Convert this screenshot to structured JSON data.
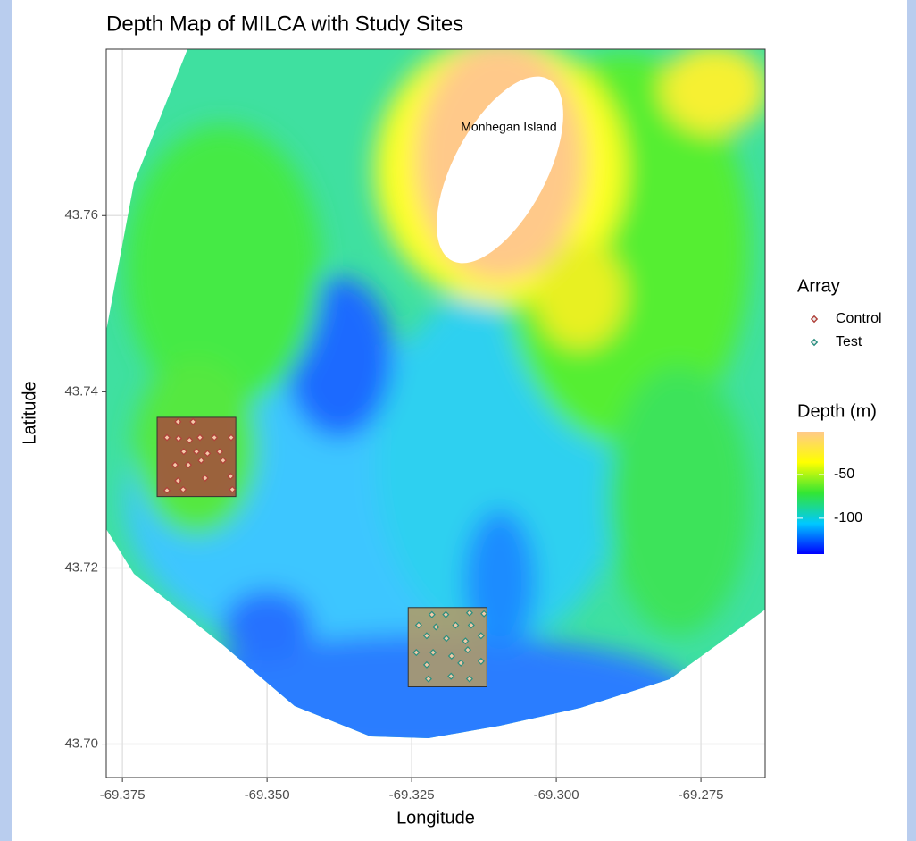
{
  "chart_data": {
    "type": "scatter",
    "title": "Depth Map of MILCA with Study Sites",
    "x_label": "Longitude",
    "y_label": "Latitude",
    "xlim": [
      -69.3778,
      -69.2639
    ],
    "ylim": [
      43.6962,
      43.7789
    ],
    "xticks": [
      -69.375,
      {
        "value": -69.35,
        "label": "-69.350"
      },
      -69.325,
      {
        "value": -69.3,
        "label": "-69.300"
      },
      -69.275
    ],
    "yticks": [
      {
        "value": 43.7,
        "label": "43.70"
      },
      43.72,
      43.74,
      43.76
    ],
    "grid": true,
    "legend_title": "Array",
    "series": [
      {
        "name": "Control",
        "color": "#b0413a",
        "region_fill": "#a84a3c",
        "region": {
          "x": [
            -69.369,
            -69.3554
          ],
          "y": [
            43.7281,
            43.7371
          ]
        },
        "x": [
          -69.3654,
          -69.3628,
          -69.3673,
          -69.3653,
          -69.3634,
          -69.3616,
          -69.3591,
          -69.3562,
          -69.3644,
          -69.3622,
          -69.3603,
          -69.3582,
          -69.3659,
          -69.3636,
          -69.3614,
          -69.3576,
          -69.3654,
          -69.3607,
          -69.3563,
          -69.3673,
          -69.3645,
          -69.356
        ],
        "values": [
          43.7366,
          43.7366,
          43.7348,
          43.7347,
          43.7345,
          43.7348,
          43.7348,
          43.7348,
          43.7332,
          43.7332,
          43.733,
          43.7332,
          43.7317,
          43.7317,
          43.7322,
          43.7322,
          43.7299,
          43.7302,
          43.7304,
          43.7288,
          43.7289,
          43.7289
        ]
      },
      {
        "name": "Test",
        "color": "#2b8f80",
        "region_fill": "#b59a62",
        "region": {
          "x": [
            -69.3256,
            -69.312
          ],
          "y": [
            43.7065,
            43.7155
          ]
        },
        "x": [
          -69.3215,
          -69.3191,
          -69.315,
          -69.3125,
          -69.3238,
          -69.3208,
          -69.3174,
          -69.3147,
          -69.3224,
          -69.319,
          -69.3157,
          -69.313,
          -69.3242,
          -69.3213,
          -69.3181,
          -69.3153,
          -69.3224,
          -69.3165,
          -69.313,
          -69.3221,
          -69.3182,
          -69.315
        ],
        "values": [
          43.7147,
          43.7147,
          43.7149,
          43.7148,
          43.7135,
          43.7133,
          43.7135,
          43.7135,
          43.7123,
          43.712,
          43.7117,
          43.7123,
          43.7104,
          43.7104,
          43.71,
          43.7107,
          43.709,
          43.7092,
          43.7094,
          43.7074,
          43.7077,
          43.7074
        ]
      }
    ],
    "annotation": {
      "text": "Monhegan Island",
      "x": -69.3082,
      "y": 43.77
    },
    "colorbar": {
      "title": "Depth (m)",
      "limits": [
        -141,
        -1
      ],
      "ticks": [
        -50,
        -100
      ],
      "colors": [
        "#0000ff",
        "#00c8ff",
        "#33e633",
        "#ffff00",
        "#ffc98a"
      ]
    }
  }
}
